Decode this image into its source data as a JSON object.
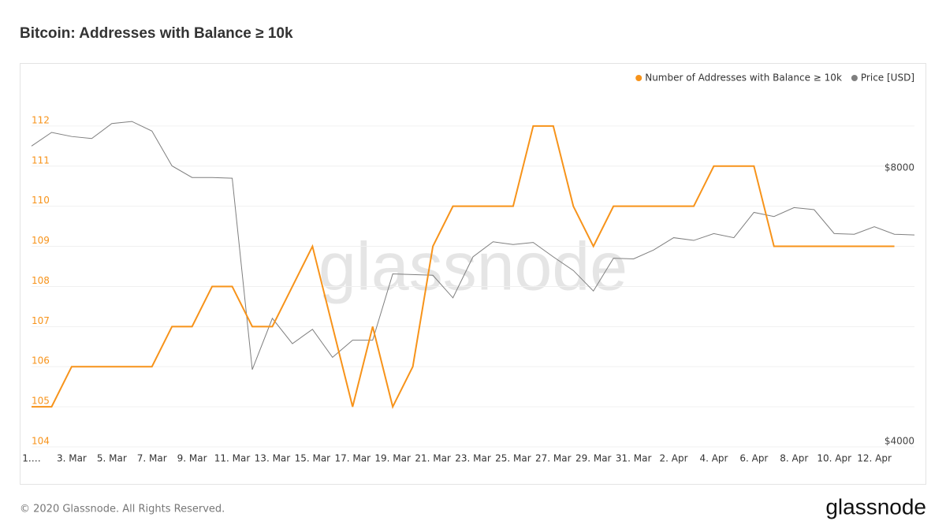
{
  "chart_data": {
    "type": "line",
    "title": "Bitcoin: Addresses with Balance ≥ 10k",
    "categories": [
      "1.…",
      null,
      "3. Mar",
      null,
      "5. Mar",
      null,
      "7. Mar",
      null,
      "9. Mar",
      null,
      "11. Mar",
      null,
      "13. Mar",
      null,
      "15. Mar",
      null,
      "17. Mar",
      null,
      "19. Mar",
      null,
      "21. Mar",
      null,
      "23. Mar",
      null,
      "25. Mar",
      null,
      "27. Mar",
      null,
      "29. Mar",
      null,
      "31. Mar",
      null,
      "2. Apr",
      null,
      "4. Apr",
      null,
      "6. Apr",
      null,
      "8. Apr",
      null,
      "10. Apr",
      null,
      "12. Apr",
      null,
      null
    ],
    "series": [
      {
        "name": "Number of Addresses with Balance ≥ 10k",
        "color": "#f7931a",
        "axis": "y",
        "values": [
          105,
          105,
          106,
          106,
          106,
          106,
          106,
          107,
          107,
          108,
          108,
          107,
          107,
          108,
          109,
          107,
          105,
          107,
          105,
          106,
          109,
          110,
          110,
          110,
          110,
          112,
          112,
          110,
          109,
          110,
          110,
          110,
          110,
          110,
          111,
          111,
          111,
          109,
          109,
          109,
          109,
          109,
          109,
          109,
          null
        ]
      },
      {
        "name": "Price [USD]",
        "color": "#7f7f7f",
        "axis": "y2",
        "values": [
          8400,
          8600,
          8540,
          8510,
          8730,
          8760,
          8620,
          8110,
          7940,
          7940,
          7930,
          5130,
          5880,
          5510,
          5720,
          5310,
          5560,
          5560,
          6530,
          6520,
          6510,
          6180,
          6780,
          7000,
          6960,
          6990,
          6780,
          6580,
          6280,
          6760,
          6750,
          6880,
          7060,
          7020,
          7120,
          7060,
          7430,
          7370,
          7500,
          7470,
          7120,
          7110,
          7220,
          7110,
          7100
        ]
      }
    ],
    "ylim": [
      104,
      113
    ],
    "yticks": [
      104,
      105,
      106,
      107,
      108,
      109,
      110,
      111,
      112
    ],
    "y2lim": [
      4000,
      9280
    ],
    "y2ticks": [
      {
        "value": 4000,
        "label": "$4000"
      },
      {
        "value": 8000,
        "label": "$8000"
      }
    ],
    "grid": true,
    "legend": "top-right"
  },
  "watermark": "glassnode",
  "footer": "© 2020 Glassnode. All Rights Reserved.",
  "logo": "glassnode"
}
